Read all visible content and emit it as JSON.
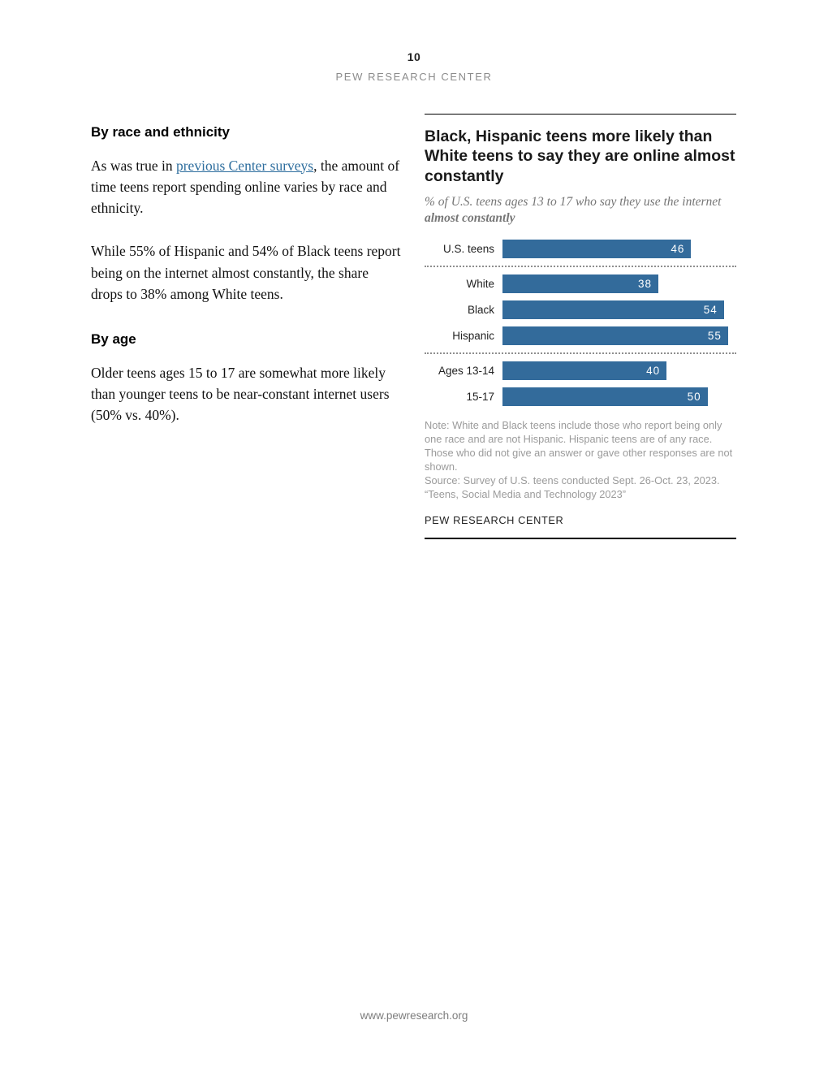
{
  "page": {
    "number": "10",
    "brand": "PEW RESEARCH CENTER",
    "footer_url": "www.pewresearch.org"
  },
  "article": {
    "race_section": {
      "heading": "By race and ethnicity",
      "p1_pre": "As was true in ",
      "p1_link": "previous Center surveys",
      "p1_post": ", the amount of time teens report spending online varies by race and ethnicity.",
      "p2": "While 55% of Hispanic and 54% of Black teens report being on the internet almost constantly, the share drops to 38% among White teens."
    },
    "age_section": {
      "heading": "By age",
      "p1": "Older teens ages 15 to 17 are somewhat more likely than younger teens to be near-constant internet users (50% vs. 40%)."
    }
  },
  "chart": {
    "title": "Black, Hispanic teens more likely than White teens to say they are online almost constantly",
    "subtitle_pre": "% of U.S. teens ages 13 to 17 who say they use the internet ",
    "subtitle_bold": "almost constantly",
    "note": "Note: White and Black teens include those who report being only one race and are not Hispanic. Hispanic teens are of any race. Those who did not give an answer or gave other responses are not shown.",
    "source": "Source: Survey of U.S. teens conducted Sept. 26-Oct. 23, 2023.",
    "quote": "“Teens, Social Media and Technology 2023”",
    "brand": "PEW RESEARCH CENTER",
    "bar_color": "#336b9b"
  },
  "chart_data": {
    "type": "bar",
    "orientation": "horizontal",
    "title": "Black, Hispanic teens more likely than White teens to say they are online almost constantly",
    "subtitle": "% of U.S. teens ages 13 to 17 who say they use the internet almost constantly",
    "categories": [
      "U.S. teens",
      "White",
      "Black",
      "Hispanic",
      "Ages 13-14",
      "15-17"
    ],
    "values": [
      46,
      38,
      54,
      55,
      40,
      50
    ],
    "separators_after": [
      0,
      3
    ],
    "xlim": [
      0,
      57
    ],
    "value_labels": "inside-end, white",
    "grid": false,
    "legend": "none"
  }
}
